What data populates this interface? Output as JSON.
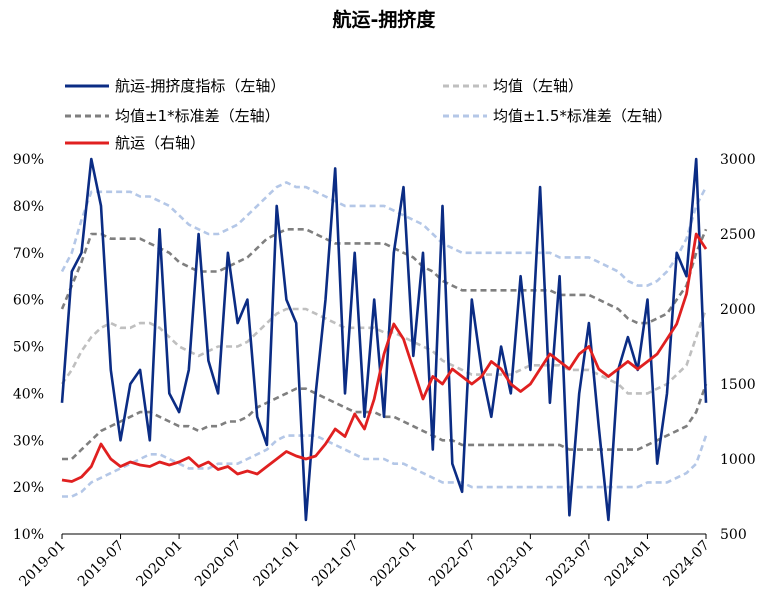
{
  "chart_data": {
    "type": "line",
    "title": "航运-拥挤度",
    "x": [
      "2019-01",
      "2019-02",
      "2019-03",
      "2019-04",
      "2019-05",
      "2019-06",
      "2019-07",
      "2019-08",
      "2019-09",
      "2019-10",
      "2019-11",
      "2019-12",
      "2020-01",
      "2020-02",
      "2020-03",
      "2020-04",
      "2020-05",
      "2020-06",
      "2020-07",
      "2020-08",
      "2020-09",
      "2020-10",
      "2020-11",
      "2020-12",
      "2021-01",
      "2021-02",
      "2021-03",
      "2021-04",
      "2021-05",
      "2021-06",
      "2021-07",
      "2021-08",
      "2021-09",
      "2021-10",
      "2021-11",
      "2021-12",
      "2022-01",
      "2022-02",
      "2022-03",
      "2022-04",
      "2022-05",
      "2022-06",
      "2022-07",
      "2022-08",
      "2022-09",
      "2022-10",
      "2022-11",
      "2022-12",
      "2023-01",
      "2023-02",
      "2023-03",
      "2023-04",
      "2023-05",
      "2023-06",
      "2023-07",
      "2023-08",
      "2023-09",
      "2023-10",
      "2023-11",
      "2023-12",
      "2024-01",
      "2024-02",
      "2024-03",
      "2024-04",
      "2024-05",
      "2024-06",
      "2024-07"
    ],
    "x_tick_labels": [
      "2019-01",
      "2019-07",
      "2020-01",
      "2020-07",
      "2021-01",
      "2021-07",
      "2022-01",
      "2022-07",
      "2023-01",
      "2023-07",
      "2024-01",
      "2024-07"
    ],
    "y_left": {
      "min": 0.1,
      "max": 0.9,
      "ticks": [
        "10%",
        "20%",
        "30%",
        "40%",
        "50%",
        "60%",
        "70%",
        "80%",
        "90%"
      ]
    },
    "y_right": {
      "min": 500,
      "max": 3000,
      "ticks": [
        "500",
        "1000",
        "1500",
        "2000",
        "2500",
        "3000"
      ]
    },
    "legend": [
      {
        "label": "航运-拥挤度指标（左轴）",
        "color": "#0b2c84",
        "style": "solid",
        "key": "index"
      },
      {
        "label": "均值（左轴）",
        "color": "#bfbfbf",
        "style": "dashed",
        "key": "mean"
      },
      {
        "label": "均值±1*标准差（左轴）",
        "color": "#7f7f7f",
        "style": "dashed",
        "key": "band1"
      },
      {
        "label": "均值±1.5*标准差（左轴）",
        "color": "#b4c7e7",
        "style": "dashed",
        "key": "band15"
      },
      {
        "label": "航运（右轴）",
        "color": "#e02020",
        "style": "solid",
        "key": "shipping"
      }
    ],
    "series": [
      {
        "key": "index",
        "axis": "left",
        "values": [
          0.38,
          0.66,
          0.7,
          0.9,
          0.8,
          0.45,
          0.3,
          0.42,
          0.45,
          0.3,
          0.75,
          0.4,
          0.36,
          0.45,
          0.74,
          0.47,
          0.4,
          0.7,
          0.55,
          0.6,
          0.35,
          0.29,
          0.8,
          0.6,
          0.55,
          0.13,
          0.4,
          0.6,
          0.88,
          0.4,
          0.7,
          0.35,
          0.6,
          0.35,
          0.7,
          0.84,
          0.48,
          0.7,
          0.28,
          0.8,
          0.25,
          0.19,
          0.6,
          0.45,
          0.35,
          0.5,
          0.4,
          0.65,
          0.45,
          0.84,
          0.38,
          0.65,
          0.14,
          0.4,
          0.55,
          0.33,
          0.13,
          0.45,
          0.52,
          0.45,
          0.6,
          0.25,
          0.4,
          0.7,
          0.65,
          0.9,
          0.38
        ]
      },
      {
        "key": "mean",
        "axis": "left",
        "values": [
          0.42,
          0.45,
          0.49,
          0.52,
          0.54,
          0.55,
          0.54,
          0.54,
          0.55,
          0.55,
          0.54,
          0.52,
          0.5,
          0.49,
          0.48,
          0.49,
          0.5,
          0.5,
          0.5,
          0.51,
          0.53,
          0.55,
          0.57,
          0.58,
          0.58,
          0.58,
          0.57,
          0.56,
          0.55,
          0.54,
          0.54,
          0.54,
          0.54,
          0.53,
          0.53,
          0.52,
          0.51,
          0.5,
          0.49,
          0.47,
          0.46,
          0.45,
          0.44,
          0.44,
          0.44,
          0.44,
          0.44,
          0.45,
          0.46,
          0.46,
          0.46,
          0.46,
          0.45,
          0.45,
          0.45,
          0.44,
          0.43,
          0.42,
          0.4,
          0.4,
          0.4,
          0.41,
          0.42,
          0.44,
          0.46,
          0.52,
          0.58
        ]
      },
      {
        "key": "band1_upper",
        "axis": "left",
        "values": [
          0.58,
          0.63,
          0.68,
          0.74,
          0.74,
          0.73,
          0.73,
          0.73,
          0.73,
          0.72,
          0.71,
          0.7,
          0.68,
          0.67,
          0.66,
          0.66,
          0.66,
          0.67,
          0.68,
          0.69,
          0.71,
          0.73,
          0.74,
          0.75,
          0.75,
          0.75,
          0.74,
          0.73,
          0.72,
          0.72,
          0.72,
          0.72,
          0.72,
          0.72,
          0.71,
          0.7,
          0.69,
          0.67,
          0.66,
          0.64,
          0.63,
          0.62,
          0.62,
          0.62,
          0.62,
          0.62,
          0.62,
          0.62,
          0.62,
          0.62,
          0.62,
          0.61,
          0.61,
          0.61,
          0.61,
          0.6,
          0.59,
          0.58,
          0.56,
          0.55,
          0.55,
          0.56,
          0.57,
          0.6,
          0.63,
          0.7,
          0.75
        ]
      },
      {
        "key": "band1_lower",
        "axis": "left",
        "values": [
          0.26,
          0.26,
          0.28,
          0.3,
          0.32,
          0.33,
          0.34,
          0.35,
          0.36,
          0.36,
          0.35,
          0.34,
          0.33,
          0.33,
          0.32,
          0.33,
          0.33,
          0.34,
          0.34,
          0.35,
          0.37,
          0.38,
          0.39,
          0.4,
          0.41,
          0.41,
          0.4,
          0.39,
          0.38,
          0.37,
          0.36,
          0.36,
          0.36,
          0.35,
          0.35,
          0.34,
          0.33,
          0.32,
          0.31,
          0.3,
          0.3,
          0.29,
          0.29,
          0.29,
          0.29,
          0.29,
          0.29,
          0.29,
          0.29,
          0.29,
          0.29,
          0.29,
          0.28,
          0.28,
          0.28,
          0.28,
          0.28,
          0.28,
          0.28,
          0.28,
          0.29,
          0.3,
          0.31,
          0.32,
          0.33,
          0.36,
          0.42
        ]
      },
      {
        "key": "band15_upper",
        "axis": "left",
        "values": [
          0.66,
          0.7,
          0.77,
          0.83,
          0.83,
          0.83,
          0.83,
          0.83,
          0.82,
          0.82,
          0.81,
          0.8,
          0.78,
          0.76,
          0.75,
          0.74,
          0.74,
          0.75,
          0.76,
          0.78,
          0.8,
          0.82,
          0.84,
          0.85,
          0.84,
          0.84,
          0.83,
          0.82,
          0.81,
          0.8,
          0.8,
          0.8,
          0.8,
          0.8,
          0.79,
          0.78,
          0.77,
          0.76,
          0.74,
          0.72,
          0.71,
          0.7,
          0.7,
          0.7,
          0.7,
          0.7,
          0.7,
          0.7,
          0.7,
          0.7,
          0.7,
          0.69,
          0.69,
          0.69,
          0.69,
          0.68,
          0.67,
          0.66,
          0.64,
          0.63,
          0.63,
          0.64,
          0.66,
          0.69,
          0.73,
          0.8,
          0.84
        ]
      },
      {
        "key": "band15_lower",
        "axis": "left",
        "values": [
          0.18,
          0.18,
          0.19,
          0.21,
          0.22,
          0.23,
          0.24,
          0.25,
          0.26,
          0.27,
          0.27,
          0.26,
          0.25,
          0.24,
          0.24,
          0.24,
          0.25,
          0.25,
          0.25,
          0.26,
          0.27,
          0.28,
          0.3,
          0.31,
          0.31,
          0.31,
          0.31,
          0.3,
          0.29,
          0.28,
          0.27,
          0.26,
          0.26,
          0.26,
          0.25,
          0.25,
          0.24,
          0.23,
          0.22,
          0.21,
          0.21,
          0.21,
          0.2,
          0.2,
          0.2,
          0.2,
          0.2,
          0.2,
          0.2,
          0.2,
          0.2,
          0.2,
          0.2,
          0.2,
          0.2,
          0.2,
          0.2,
          0.2,
          0.2,
          0.2,
          0.21,
          0.21,
          0.21,
          0.22,
          0.23,
          0.25,
          0.31
        ]
      },
      {
        "key": "shipping",
        "axis": "right",
        "values": [
          860,
          850,
          880,
          950,
          1100,
          1000,
          950,
          980,
          960,
          950,
          980,
          960,
          980,
          1010,
          950,
          980,
          930,
          950,
          900,
          920,
          900,
          950,
          1000,
          1050,
          1020,
          1000,
          1020,
          1100,
          1200,
          1150,
          1300,
          1200,
          1400,
          1700,
          1900,
          1800,
          1600,
          1400,
          1550,
          1500,
          1600,
          1550,
          1500,
          1550,
          1650,
          1600,
          1500,
          1450,
          1500,
          1600,
          1700,
          1650,
          1600,
          1700,
          1750,
          1600,
          1550,
          1600,
          1650,
          1600,
          1650,
          1700,
          1800,
          1900,
          2100,
          2500,
          2400
        ]
      }
    ]
  }
}
